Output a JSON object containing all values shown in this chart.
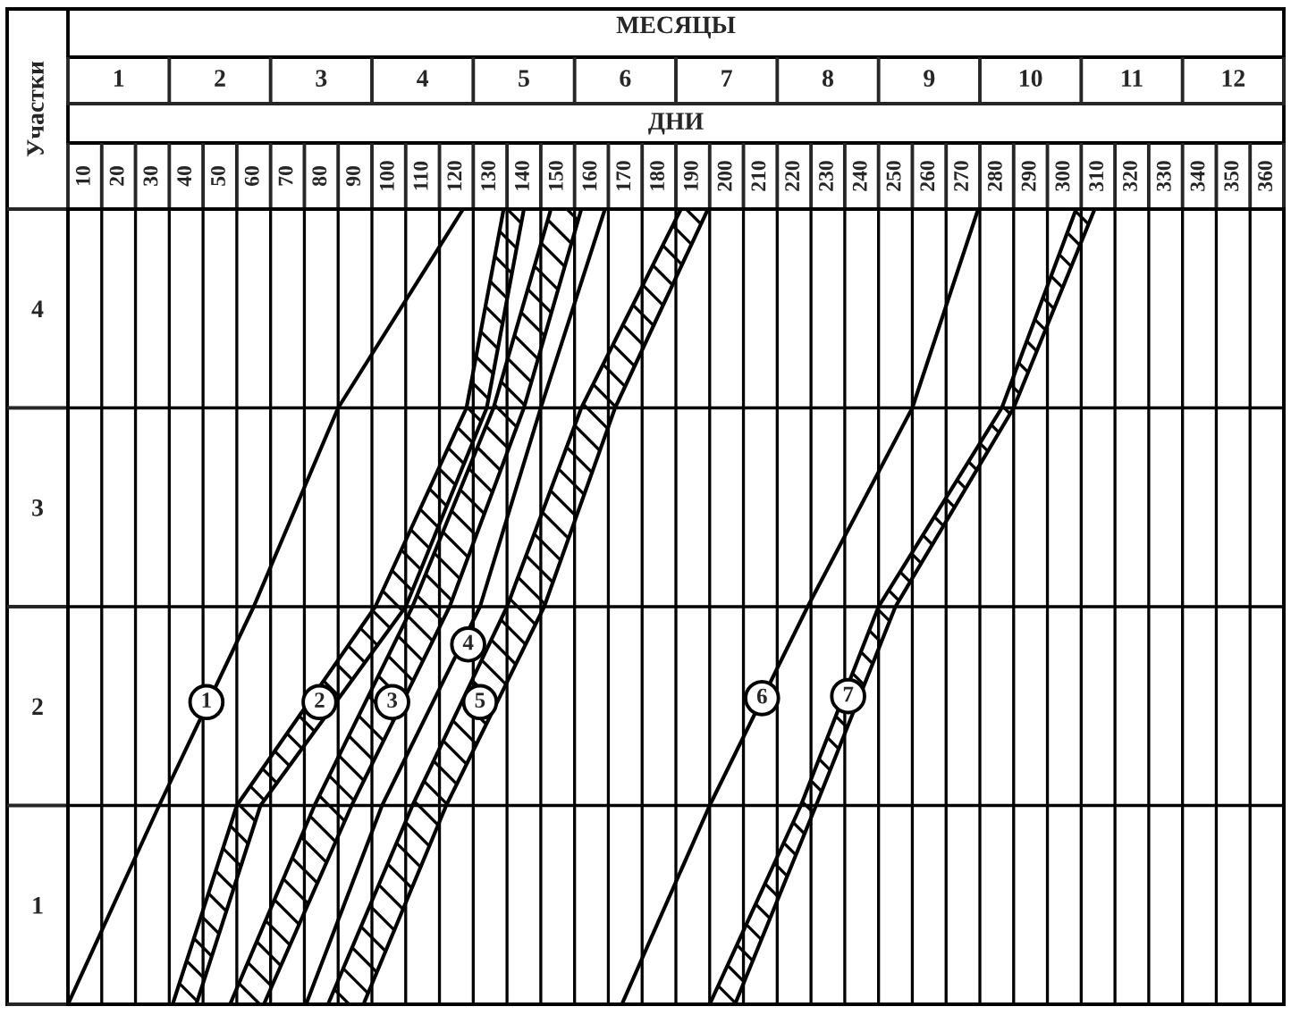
{
  "chart_data": {
    "type": "line",
    "xlabel": "ДНИ",
    "x2label": "МЕСЯЦЫ",
    "ylabel": "Участки",
    "xlim": [
      5,
      365
    ],
    "x2lim": [
      0.5,
      12.5
    ],
    "ylim": [
      0.5,
      4.5
    ],
    "grid": true,
    "xticks": [
      {
        "value": 5,
        "label": null
      },
      10,
      {
        "value": 15,
        "label": null
      },
      20,
      {
        "value": 25,
        "label": null
      },
      30,
      {
        "value": 35,
        "label": null
      },
      40,
      {
        "value": 45,
        "label": null
      },
      50,
      {
        "value": 55,
        "label": null
      },
      60,
      {
        "value": 65,
        "label": null
      },
      70,
      {
        "value": 75,
        "label": null
      },
      80,
      {
        "value": 85,
        "label": null
      },
      90,
      {
        "value": 95,
        "label": null
      },
      100,
      {
        "value": 105,
        "label": null
      },
      110,
      {
        "value": 115,
        "label": null
      },
      120,
      {
        "value": 125,
        "label": null
      },
      130,
      {
        "value": 135,
        "label": null
      },
      140,
      {
        "value": 145,
        "label": null
      },
      150,
      {
        "value": 155,
        "label": null
      },
      160,
      {
        "value": 165,
        "label": null
      },
      170,
      {
        "value": 175,
        "label": null
      },
      180,
      {
        "value": 185,
        "label": null
      },
      190,
      {
        "value": 195,
        "label": null
      },
      200,
      {
        "value": 205,
        "label": null
      },
      210,
      {
        "value": 215,
        "label": null
      },
      220,
      {
        "value": 225,
        "label": null
      },
      230,
      {
        "value": 235,
        "label": null
      },
      240,
      {
        "value": 245,
        "label": null
      },
      250,
      {
        "value": 255,
        "label": null
      },
      260,
      {
        "value": 265,
        "label": null
      },
      270,
      {
        "value": 275,
        "label": null
      },
      280,
      {
        "value": 285,
        "label": null
      },
      290,
      {
        "value": 295,
        "label": null
      },
      300,
      {
        "value": 305,
        "label": null
      },
      310,
      {
        "value": 315,
        "label": null
      },
      320,
      {
        "value": 325,
        "label": null
      },
      330,
      {
        "value": 335,
        "label": null
      },
      340,
      {
        "value": 345,
        "label": null
      },
      350,
      {
        "value": 355,
        "label": null
      },
      360,
      {
        "value": 365,
        "label": null
      }
    ],
    "x2ticks": [
      {
        "value": 0.5,
        "label": null
      },
      1,
      {
        "value": 1.5,
        "label": null
      },
      2,
      {
        "value": 2.5,
        "label": null
      },
      3,
      {
        "value": 3.5,
        "label": null
      },
      4,
      {
        "value": 4.5,
        "label": null
      },
      5,
      {
        "value": 5.5,
        "label": null
      },
      6,
      {
        "value": 6.5,
        "label": null
      },
      7,
      {
        "value": 7.5,
        "label": null
      },
      8,
      {
        "value": 8.5,
        "label": null
      },
      9,
      {
        "value": 9.5,
        "label": null
      },
      10,
      {
        "value": 10.5,
        "label": null
      },
      11,
      {
        "value": 11.5,
        "label": null
      },
      12,
      {
        "value": 12.5,
        "label": null
      }
    ],
    "yticks": [
      {
        "value": 0.5,
        "label": null
      },
      1,
      {
        "value": 1.5,
        "label": null
      },
      2,
      {
        "value": 2.5,
        "label": null
      },
      3,
      {
        "value": 3.5,
        "label": null
      },
      4,
      {
        "value": 4.5,
        "label": null
      }
    ],
    "series": [
      {
        "color": "#000000",
        "x": [
          5,
          32,
          60,
          85,
          122
        ],
        "values": [
          0.5,
          1.5,
          2.5,
          3.5,
          4.5
        ]
      },
      {
        "type": "area",
        "color": "#000000",
        "x": [
          36,
          55,
          96,
          123,
          134,
          140,
          129,
          105,
          62,
          43
        ],
        "values": [
          0.5,
          1.5,
          2.5,
          3.5,
          4.5,
          4.5,
          3.5,
          2.5,
          1.5,
          0.5
        ]
      },
      {
        "type": "area",
        "color": "#000000",
        "x": [
          53,
          78,
          107,
          131,
          148,
          157,
          140,
          118,
          89,
          63
        ],
        "values": [
          0.5,
          1.5,
          2.5,
          3.5,
          4.5,
          4.5,
          3.5,
          2.5,
          1.5,
          0.5
        ]
      },
      {
        "color": "#000000",
        "x": [
          75.5,
          98,
          127,
          145,
          164
        ],
        "values": [
          0.5,
          1.5,
          2.5,
          3.5,
          4.5
        ]
      },
      {
        "type": "area",
        "color": "#000000",
        "x": [
          82,
          107,
          135,
          157,
          186.5,
          194.5,
          167,
          146,
          117,
          92.5
        ],
        "values": [
          0.5,
          1.5,
          2.5,
          3.5,
          4.5,
          4.5,
          3.5,
          2.5,
          1.5,
          0.5
        ]
      },
      {
        "color": "#000000",
        "x": [
          169,
          195,
          224,
          255,
          274.5
        ],
        "values": [
          0.5,
          1.5,
          2.5,
          3.5,
          4.5
        ]
      },
      {
        "type": "area",
        "color": "#000000",
        "x": [
          195,
          222,
          245,
          281.5,
          303.5,
          309,
          285,
          250,
          226.5,
          202.5
        ],
        "values": [
          0.5,
          1.5,
          2.5,
          3.5,
          4.5,
          4.5,
          3.5,
          2.5,
          1.5,
          0.5
        ]
      }
    ],
    "annotations": [
      {
        "text": "1",
        "x": 46,
        "y": 2.02
      },
      {
        "text": "2",
        "x": 79.5,
        "y": 2.02
      },
      {
        "text": "3",
        "x": 101,
        "y": 2.02
      },
      {
        "text": "4",
        "x": 123.5,
        "y": 2.31
      },
      {
        "text": "5",
        "x": 127,
        "y": 2.02
      },
      {
        "text": "6",
        "x": 210.5,
        "y": 2.04
      },
      {
        "text": "7",
        "x": 236,
        "y": 2.05
      }
    ]
  }
}
